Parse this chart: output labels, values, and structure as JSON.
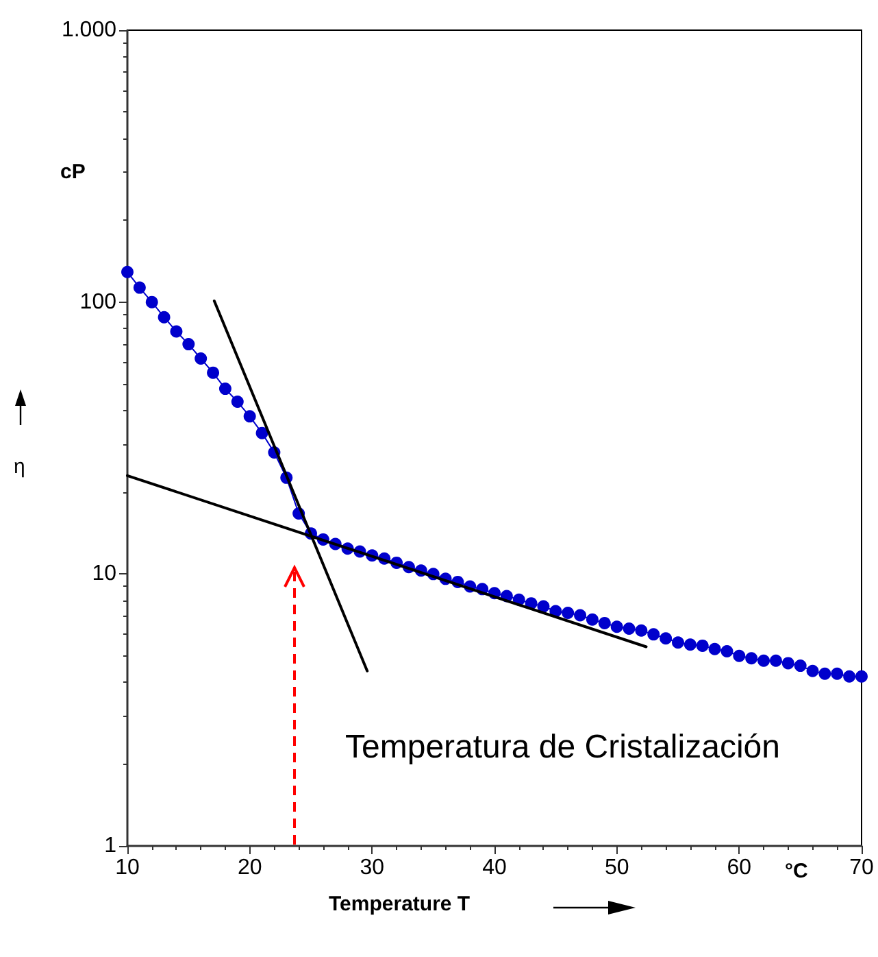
{
  "chart_data": {
    "type": "line",
    "xlabel": "Temperature T",
    "ylabel": "η",
    "annotations": [
      "cP",
      "°C",
      "Temperatura de Cristalización"
    ],
    "xlim": [
      10,
      70
    ],
    "xticks": [
      10,
      20,
      30,
      40,
      50,
      60,
      70
    ],
    "ylim": [
      1,
      1000
    ],
    "yticks": [
      1,
      10,
      100,
      {
        "value": 1000,
        "label": "1.000"
      }
    ],
    "log": "y",
    "grid": false,
    "marker": "circle",
    "series": [
      {
        "color": "#0000cc",
        "x": [
          10,
          11,
          12,
          13,
          14,
          15,
          16,
          17,
          18,
          19,
          20,
          21,
          22,
          23,
          24,
          25,
          26,
          27,
          28,
          29,
          30,
          31,
          32,
          33,
          34,
          35,
          36,
          37,
          38,
          39,
          40,
          41,
          42,
          43,
          44,
          45,
          46,
          47,
          48,
          49,
          50,
          51,
          52,
          53,
          54,
          55,
          56,
          57,
          58,
          59,
          60,
          61,
          62,
          63,
          64,
          65,
          66,
          67,
          68,
          69,
          70
        ],
        "values": [
          129,
          113,
          100,
          88,
          78,
          70,
          62,
          55,
          48,
          43,
          38,
          33,
          28,
          22.6,
          16.7,
          14.1,
          13.4,
          12.9,
          12.4,
          12.1,
          11.7,
          11.4,
          11.0,
          10.6,
          10.3,
          10.0,
          9.6,
          9.35,
          9.0,
          8.8,
          8.5,
          8.3,
          8.05,
          7.8,
          7.6,
          7.3,
          7.2,
          7.05,
          6.8,
          6.6,
          6.4,
          6.3,
          6.2,
          6.0,
          5.8,
          5.6,
          5.5,
          5.45,
          5.3,
          5.2,
          5.0,
          4.9,
          4.8,
          4.8,
          4.7,
          4.6,
          4.4,
          4.3,
          4.3,
          4.2,
          4.2
        ]
      },
      {
        "color": "#000000",
        "marker": "none",
        "x": [
          17.1,
          29.6
        ],
        "values": [
          101,
          4.4
        ]
      },
      {
        "color": "#000000",
        "marker": "none",
        "x": [
          10,
          52.4
        ],
        "values": [
          23,
          5.4
        ]
      }
    ]
  }
}
